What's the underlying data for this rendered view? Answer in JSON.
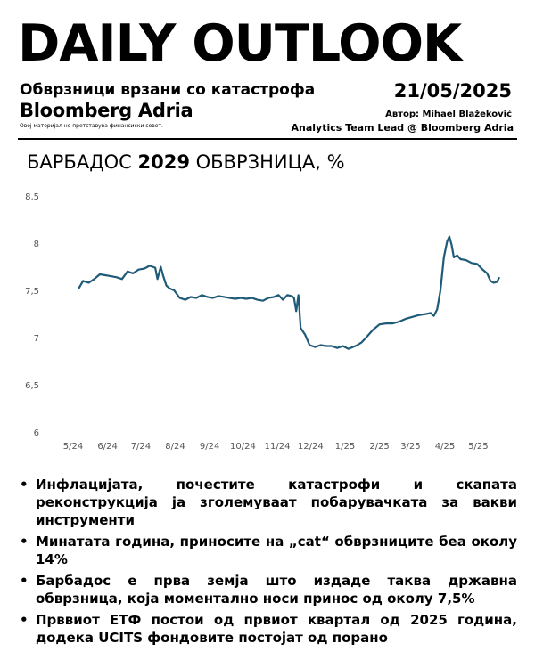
{
  "header": {
    "headline": "DAILY OUTLOOK",
    "subtitle": "Обврзници врзани со катастрофа",
    "brand": "Bloomberg Adria",
    "disclaimer": "Овој материјал не претставува финансиски совет.",
    "date": "21/05/2025",
    "author": "Автор: Mihael Blažeković",
    "role": "Analytics Team Lead @ Bloomberg Adria"
  },
  "chart_title": {
    "part1": "БАРБАДОС ",
    "year": "2029",
    "part2": " ОБВРЗНИЦА, %"
  },
  "chart_data": {
    "type": "line",
    "title": "БАРБАДОС 2029 ОБВРЗНИЦА, %",
    "xlabel": "",
    "ylabel": "",
    "ylim": [
      6,
      8.5
    ],
    "y_ticks": [
      "8,5",
      "8",
      "7,5",
      "7",
      "6,5",
      "6"
    ],
    "x_ticks": [
      "5/24",
      "6/24",
      "7/24",
      "8/24",
      "9/24",
      "10/24",
      "11/24",
      "12/24",
      "1/25",
      "2/25",
      "3/25",
      "4/25",
      "5/25"
    ],
    "grid": false,
    "color": "#1f5a78",
    "series": [
      {
        "x": [
          "2024-05-06",
          "2024-05-10",
          "2024-05-15",
          "2024-05-20",
          "2024-05-25",
          "2024-05-30",
          "2024-06-04",
          "2024-06-09",
          "2024-06-14",
          "2024-06-19",
          "2024-06-24",
          "2024-06-29",
          "2024-07-04",
          "2024-07-09",
          "2024-07-14",
          "2024-07-16",
          "2024-07-19",
          "2024-07-21",
          "2024-07-24",
          "2024-07-27",
          "2024-07-31",
          "2024-08-05",
          "2024-08-10",
          "2024-08-15",
          "2024-08-20",
          "2024-08-25",
          "2024-08-30",
          "2024-09-04",
          "2024-09-09",
          "2024-09-14",
          "2024-09-19",
          "2024-09-24",
          "2024-09-29",
          "2024-10-04",
          "2024-10-09",
          "2024-10-14",
          "2024-10-19",
          "2024-10-24",
          "2024-10-29",
          "2024-11-02",
          "2024-11-06",
          "2024-11-10",
          "2024-11-14",
          "2024-11-16",
          "2024-11-18",
          "2024-11-20",
          "2024-11-22",
          "2024-11-26",
          "2024-11-30",
          "2024-12-05",
          "2024-12-10",
          "2024-12-15",
          "2024-12-20",
          "2024-12-25",
          "2024-12-30",
          "2025-01-04",
          "2025-01-08",
          "2025-01-12",
          "2025-01-16",
          "2025-01-20",
          "2025-01-26",
          "2025-02-01",
          "2025-02-07",
          "2025-02-13",
          "2025-02-19",
          "2025-02-25",
          "2025-03-03",
          "2025-03-09",
          "2025-03-15",
          "2025-03-19",
          "2025-03-22",
          "2025-03-25",
          "2025-03-28",
          "2025-03-31",
          "2025-04-03",
          "2025-04-05",
          "2025-04-07",
          "2025-04-09",
          "2025-04-12",
          "2025-04-15",
          "2025-04-20",
          "2025-04-25",
          "2025-04-30",
          "2025-05-05",
          "2025-05-09",
          "2025-05-12",
          "2025-05-15",
          "2025-05-18",
          "2025-05-20"
        ],
        "values": [
          7.52,
          7.6,
          7.58,
          7.62,
          7.67,
          7.66,
          7.65,
          7.64,
          7.62,
          7.7,
          7.68,
          7.72,
          7.73,
          7.76,
          7.74,
          7.62,
          7.75,
          7.66,
          7.55,
          7.52,
          7.5,
          7.42,
          7.4,
          7.43,
          7.42,
          7.45,
          7.43,
          7.42,
          7.44,
          7.43,
          7.42,
          7.41,
          7.42,
          7.41,
          7.42,
          7.4,
          7.39,
          7.42,
          7.43,
          7.45,
          7.4,
          7.45,
          7.44,
          7.42,
          7.28,
          7.45,
          7.1,
          7.03,
          6.92,
          6.9,
          6.92,
          6.91,
          6.91,
          6.89,
          6.91,
          6.88,
          6.9,
          6.92,
          6.95,
          7.0,
          7.08,
          7.14,
          7.15,
          7.15,
          7.17,
          7.2,
          7.22,
          7.24,
          7.25,
          7.26,
          7.23,
          7.3,
          7.5,
          7.85,
          8.02,
          8.07,
          7.98,
          7.85,
          7.87,
          7.83,
          7.82,
          7.79,
          7.78,
          7.72,
          7.68,
          7.6,
          7.58,
          7.59,
          7.64
        ]
      }
    ]
  },
  "bullets": [
    "Инфлацијата, почестите катастрофи и скапата реконструкција ја зголемуваат побарувачката за вакви инструменти",
    "Минатата година, приносите на „cat“ обврзниците беа околу 14%",
    "Барбадос е прва земја што издаде таква државна обврзница, која моментално носи принос од околу 7,5%",
    "Прввиот ЕТФ постои од првиот квартал од 2025 година, додека UCITS фондовите постојат од порано"
  ]
}
